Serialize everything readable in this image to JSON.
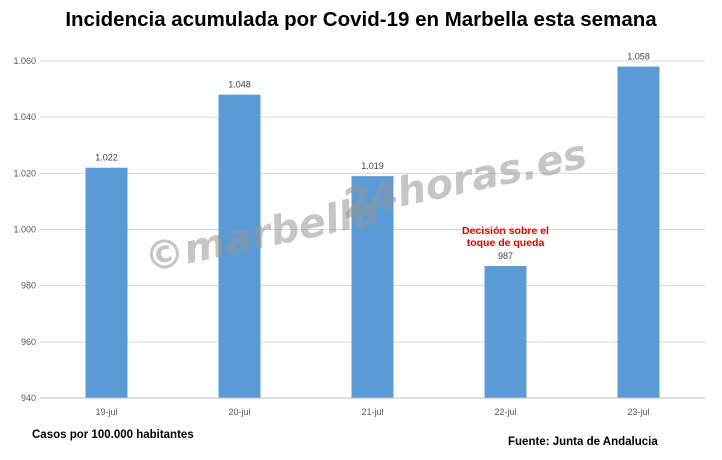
{
  "title": "Incidencia acumulada por Covid-19 en Marbella esta semana",
  "units_note": "Casos por 100.000 habitantes",
  "source": "Fuente: Junta de Andalucia",
  "watermark": {
    "left": "©marbella",
    "right": "24horas.es"
  },
  "chart_data": {
    "type": "bar",
    "categories": [
      "19-jul",
      "20-jul",
      "21-jul",
      "22-jul",
      "23-jul"
    ],
    "values": [
      1022,
      1048,
      1019,
      987,
      1058
    ],
    "value_labels": [
      "1.022",
      "1.048",
      "1.019",
      "987",
      "1.058"
    ],
    "ylim": [
      940,
      1060
    ],
    "yticks": [
      940,
      960,
      980,
      1000,
      1020,
      1040,
      1060
    ],
    "ytick_labels": [
      "940",
      "960",
      "980",
      "1.000",
      "1.020",
      "1.040",
      "1.060"
    ],
    "grid": true,
    "bar_color": "#5b9bd5",
    "annotation": {
      "category": "22-jul",
      "lines": [
        "Decisión sobre el",
        "toque de queda"
      ],
      "color": "#e00000"
    }
  }
}
